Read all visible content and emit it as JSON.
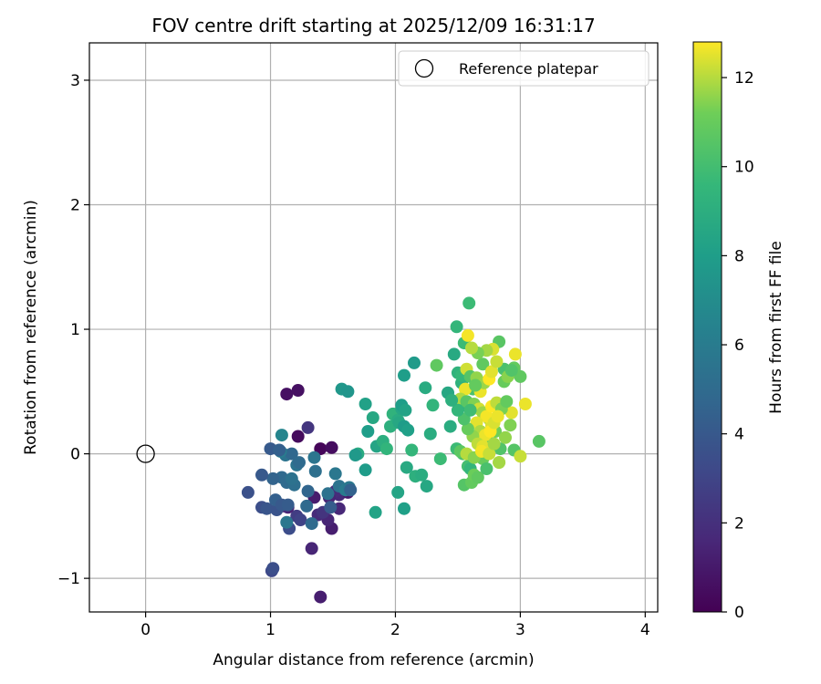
{
  "chart_data": {
    "type": "scatter",
    "title": "FOV centre drift starting at 2025/12/09 16:31:17",
    "xlabel": "Angular distance from reference (arcmin)",
    "ylabel": "Rotation from reference (arcmin)",
    "xlim": [
      -0.45,
      4.1
    ],
    "ylim": [
      -1.27,
      3.3
    ],
    "xticks": [
      0,
      1,
      2,
      3,
      4
    ],
    "yticks": [
      -1,
      0,
      1,
      2,
      3
    ],
    "xtick_labels": [
      "0",
      "1",
      "2",
      "3",
      "4"
    ],
    "ytick_labels": [
      "−1",
      "0",
      "1",
      "2",
      "3"
    ],
    "grid": true,
    "legend": {
      "location": "top-right",
      "label": "Reference platepar"
    },
    "reference_point": {
      "x": 0,
      "y": 0
    },
    "colorbar": {
      "label": "Hours from first FF file",
      "range": [
        0,
        12.8
      ],
      "ticks": [
        0,
        2,
        4,
        6,
        8,
        10,
        12
      ],
      "tick_labels": [
        "0",
        "2",
        "4",
        "6",
        "8",
        "10",
        "12"
      ],
      "colormap": "viridis"
    },
    "points": [
      [
        1.13,
        0.48,
        0.6
      ],
      [
        1.22,
        0.51,
        0.6
      ],
      [
        1.22,
        0.14,
        0.4
      ],
      [
        1.4,
        0.04,
        0.2
      ],
      [
        1.49,
        0.05,
        0.5
      ],
      [
        1.3,
        0.21,
        2.3
      ],
      [
        1.4,
        -1.15,
        1.2
      ],
      [
        1.33,
        -0.76,
        1.5
      ],
      [
        1.49,
        -0.6,
        1.2
      ],
      [
        1.46,
        -0.53,
        1.5
      ],
      [
        1.38,
        -0.49,
        1.8
      ],
      [
        1.42,
        -0.47,
        2.2
      ],
      [
        1.55,
        -0.44,
        1.6
      ],
      [
        1.55,
        -0.33,
        1.7
      ],
      [
        1.62,
        -0.31,
        1.0
      ],
      [
        1.52,
        -0.3,
        1.9
      ],
      [
        1.35,
        -0.35,
        1.1
      ],
      [
        1.47,
        -0.35,
        1.5
      ],
      [
        1.21,
        -0.5,
        2.6
      ],
      [
        1.24,
        -0.53,
        2.9
      ],
      [
        1.15,
        -0.6,
        3.4
      ],
      [
        1.14,
        -0.43,
        1.4
      ],
      [
        1.11,
        -0.42,
        1.9
      ],
      [
        1.01,
        -0.94,
        3.2
      ],
      [
        1.02,
        -0.92,
        3.5
      ],
      [
        0.82,
        -0.31,
        3.6
      ],
      [
        0.93,
        -0.43,
        3.5
      ],
      [
        0.97,
        -0.44,
        3.8
      ],
      [
        1.05,
        -0.45,
        3.7
      ],
      [
        1.04,
        -0.37,
        4.4
      ],
      [
        1.09,
        -0.41,
        4.0
      ],
      [
        1.14,
        -0.41,
        4.2
      ],
      [
        1.09,
        -0.19,
        4.9
      ],
      [
        1.02,
        -0.2,
        4.6
      ],
      [
        1.13,
        -0.23,
        5.0
      ],
      [
        1.19,
        -0.25,
        5.2
      ],
      [
        1.17,
        -0.2,
        5.4
      ],
      [
        1.21,
        -0.09,
        5.5
      ],
      [
        1.12,
        -0.01,
        5.5
      ],
      [
        1.17,
        0.0,
        4.8
      ],
      [
        1.08,
        0.02,
        6.0
      ],
      [
        1.09,
        0.15,
        6.6
      ],
      [
        1.0,
        0.04,
        4.1
      ],
      [
        1.07,
        0.03,
        4.4
      ],
      [
        0.93,
        -0.17,
        4.0
      ],
      [
        1.29,
        -0.42,
        4.9
      ],
      [
        1.33,
        -0.56,
        5.0
      ],
      [
        1.13,
        -0.55,
        5.7
      ],
      [
        1.46,
        -0.32,
        5.4
      ],
      [
        1.52,
        -0.16,
        5.7
      ],
      [
        1.55,
        -0.26,
        5.5
      ],
      [
        1.6,
        -0.29,
        6.0
      ],
      [
        1.63,
        -0.27,
        5.8
      ],
      [
        1.35,
        -0.03,
        5.6
      ],
      [
        1.36,
        -0.14,
        5.3
      ],
      [
        1.23,
        -0.07,
        5.0
      ],
      [
        1.3,
        -0.3,
        4.7
      ],
      [
        1.64,
        -0.29,
        4.5
      ],
      [
        1.48,
        -0.43,
        4.2
      ],
      [
        1.57,
        0.52,
        7.6
      ],
      [
        1.62,
        0.5,
        7.5
      ],
      [
        1.76,
        0.4,
        8.2
      ],
      [
        1.82,
        0.29,
        8.6
      ],
      [
        1.78,
        0.18,
        8.0
      ],
      [
        1.7,
        0.0,
        8.8
      ],
      [
        1.68,
        -0.01,
        7.7
      ],
      [
        1.76,
        -0.13,
        7.9
      ],
      [
        1.84,
        -0.47,
        8.3
      ],
      [
        1.85,
        0.06,
        8.4
      ],
      [
        1.9,
        0.1,
        9.0
      ],
      [
        1.93,
        0.04,
        9.4
      ],
      [
        1.96,
        0.22,
        9.1
      ],
      [
        1.98,
        0.32,
        9.3
      ],
      [
        2.02,
        0.27,
        8.8
      ],
      [
        2.03,
        0.25,
        8.6
      ],
      [
        2.05,
        0.36,
        8.5
      ],
      [
        2.07,
        0.22,
        7.9
      ],
      [
        2.1,
        0.19,
        8.1
      ],
      [
        2.05,
        0.39,
        8.0
      ],
      [
        2.08,
        0.35,
        8.3
      ],
      [
        2.07,
        0.63,
        8.0
      ],
      [
        2.15,
        0.73,
        7.8
      ],
      [
        2.02,
        -0.31,
        8.4
      ],
      [
        2.07,
        -0.44,
        8.1
      ],
      [
        2.09,
        -0.11,
        8.7
      ],
      [
        2.13,
        0.03,
        9.5
      ],
      [
        2.16,
        -0.18,
        9.1
      ],
      [
        2.21,
        -0.17,
        8.9
      ],
      [
        2.25,
        -0.26,
        8.6
      ],
      [
        2.24,
        0.53,
        8.8
      ],
      [
        2.28,
        0.16,
        8.9
      ],
      [
        2.3,
        0.39,
        9.4
      ],
      [
        2.33,
        0.71,
        10.8
      ],
      [
        2.36,
        -0.04,
        9.8
      ],
      [
        2.42,
        0.49,
        8.6
      ],
      [
        2.44,
        0.22,
        8.9
      ],
      [
        2.47,
        0.8,
        8.7
      ],
      [
        2.49,
        1.02,
        9.5
      ],
      [
        2.5,
        0.65,
        9.3
      ],
      [
        2.53,
        0.57,
        9.2
      ],
      [
        2.53,
        0.63,
        9.6
      ],
      [
        2.55,
        0.89,
        9.8
      ],
      [
        2.59,
        1.21,
        9.8
      ],
      [
        2.55,
        0.39,
        9.0
      ],
      [
        2.49,
        0.04,
        9.8
      ],
      [
        2.54,
        0.0,
        10.2
      ],
      [
        2.58,
        -0.1,
        10.0
      ],
      [
        2.6,
        -0.12,
        9.5
      ],
      [
        2.55,
        -0.25,
        10.5
      ],
      [
        2.61,
        -0.23,
        10.9
      ],
      [
        2.63,
        -0.17,
        11.1
      ],
      [
        2.66,
        -0.19,
        10.8
      ],
      [
        2.7,
        -0.04,
        11.0
      ],
      [
        2.73,
        -0.12,
        10.2
      ],
      [
        2.73,
        0.13,
        10.7
      ],
      [
        2.75,
        0.28,
        11.8
      ],
      [
        2.8,
        0.18,
        11.2
      ],
      [
        2.84,
        0.04,
        10.4
      ],
      [
        2.83,
        -0.07,
        12.3
      ],
      [
        2.77,
        0.23,
        12.4
      ],
      [
        2.83,
        -0.07,
        11.8
      ],
      [
        2.88,
        0.13,
        11.6
      ],
      [
        2.93,
        0.33,
        12.5
      ],
      [
        2.92,
        0.23,
        11.4
      ],
      [
        2.95,
        0.03,
        10.5
      ],
      [
        3.0,
        -0.02,
        12.2
      ],
      [
        3.04,
        0.4,
        12.6
      ],
      [
        3.15,
        0.1,
        10.6
      ],
      [
        3.0,
        0.62,
        10.8
      ],
      [
        2.95,
        0.69,
        10.9
      ],
      [
        2.96,
        0.8,
        12.6
      ],
      [
        2.87,
        0.68,
        10.2
      ],
      [
        2.83,
        0.9,
        10.6
      ],
      [
        2.78,
        0.84,
        12.4
      ],
      [
        2.73,
        0.83,
        11.8
      ],
      [
        2.7,
        0.72,
        10.8
      ],
      [
        2.66,
        0.81,
        11.3
      ],
      [
        2.61,
        0.85,
        12.0
      ],
      [
        2.58,
        0.95,
        12.7
      ],
      [
        2.57,
        0.68,
        12.3
      ],
      [
        2.6,
        0.62,
        10.5
      ],
      [
        2.62,
        0.52,
        10.2
      ],
      [
        2.65,
        0.61,
        11.6
      ],
      [
        2.68,
        0.5,
        12.6
      ],
      [
        2.71,
        0.57,
        11.7
      ],
      [
        2.75,
        0.6,
        12.8
      ],
      [
        2.77,
        0.66,
        12.5
      ],
      [
        2.81,
        0.74,
        12.2
      ],
      [
        2.87,
        0.58,
        11.0
      ],
      [
        2.9,
        0.62,
        11.5
      ],
      [
        2.93,
        0.67,
        10.4
      ],
      [
        2.56,
        0.52,
        12.6
      ],
      [
        2.52,
        0.44,
        11.9
      ],
      [
        2.57,
        0.42,
        10.6
      ],
      [
        2.63,
        0.4,
        11.4
      ],
      [
        2.67,
        0.36,
        12.3
      ],
      [
        2.7,
        0.33,
        11.7
      ],
      [
        2.73,
        0.3,
        12.7
      ],
      [
        2.77,
        0.38,
        12.8
      ],
      [
        2.81,
        0.41,
        12.1
      ],
      [
        2.85,
        0.36,
        11.3
      ],
      [
        2.89,
        0.42,
        10.9
      ],
      [
        2.65,
        0.25,
        12.5
      ],
      [
        2.68,
        0.18,
        11.9
      ],
      [
        2.72,
        0.15,
        12.6
      ],
      [
        2.76,
        0.18,
        12.8
      ],
      [
        2.79,
        0.25,
        12.4
      ],
      [
        2.62,
        0.14,
        11.6
      ],
      [
        2.66,
        0.08,
        12.1
      ],
      [
        2.7,
        0.06,
        12.5
      ],
      [
        2.58,
        0.2,
        11.0
      ],
      [
        2.55,
        0.28,
        10.3
      ],
      [
        2.6,
        0.35,
        9.9
      ],
      [
        2.64,
        0.55,
        10.9
      ],
      [
        2.5,
        0.35,
        9.5
      ],
      [
        2.45,
        0.43,
        9.1
      ],
      [
        2.52,
        0.02,
        10.7
      ],
      [
        2.57,
        0.0,
        12.0
      ],
      [
        2.63,
        -0.03,
        11.5
      ],
      [
        2.69,
        0.02,
        12.7
      ],
      [
        2.75,
        0.0,
        12.2
      ],
      [
        2.79,
        0.08,
        11.8
      ],
      [
        2.82,
        0.3,
        12.6
      ]
    ]
  }
}
